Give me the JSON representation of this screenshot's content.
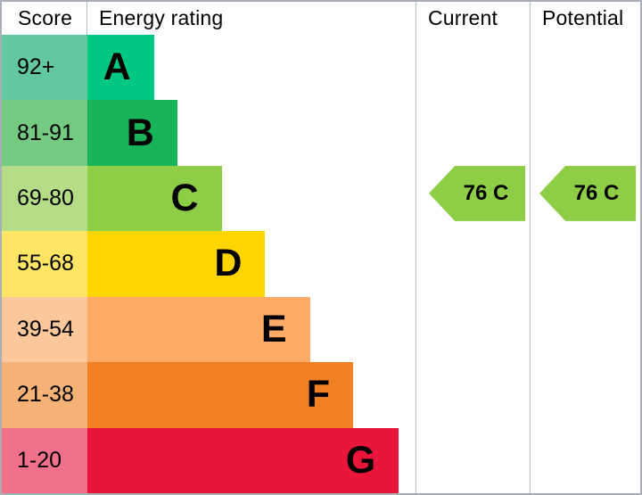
{
  "header": {
    "score": "Score",
    "energy": "Energy rating",
    "current": "Current",
    "potential": "Potential"
  },
  "rows": [
    {
      "score": "92+",
      "letter": "A",
      "bar_percent": 20.3,
      "bar_color": "#00c781",
      "score_color": "#63c7a0"
    },
    {
      "score": "81-91",
      "letter": "B",
      "bar_percent": 27.4,
      "bar_color": "#19b459",
      "score_color": "#74ca81"
    },
    {
      "score": "69-80",
      "letter": "C",
      "bar_percent": 40.9,
      "bar_color": "#8dce46",
      "score_color": "#b5dd87"
    },
    {
      "score": "55-68",
      "letter": "D",
      "bar_percent": 54.2,
      "bar_color": "#ffd500",
      "score_color": "#ffe566"
    },
    {
      "score": "39-54",
      "letter": "E",
      "bar_percent": 67.8,
      "bar_color": "#fcaa65",
      "score_color": "#fdc79c"
    },
    {
      "score": "21-38",
      "letter": "F",
      "bar_percent": 81.0,
      "bar_color": "#ef8023",
      "score_color": "#f4b276"
    },
    {
      "score": "1-20",
      "letter": "G",
      "bar_percent": 94.9,
      "bar_color": "#e9153b",
      "score_color": "#f1718a"
    }
  ],
  "current": {
    "label": "76 C",
    "value": 76,
    "rating": "C",
    "arrow_color": "#8dce46"
  },
  "potential": {
    "label": "76 C",
    "value": 76,
    "rating": "C",
    "arrow_color": "#8dce46"
  },
  "chart_data": {
    "type": "bar",
    "title": "Energy rating",
    "columns": [
      "Score",
      "Energy rating",
      "Current",
      "Potential"
    ],
    "categories": [
      "A",
      "B",
      "C",
      "D",
      "E",
      "F",
      "G"
    ],
    "score_ranges": [
      "92+",
      "81-91",
      "69-80",
      "55-68",
      "39-54",
      "21-38",
      "1-20"
    ],
    "bar_percent": [
      20.3,
      27.4,
      40.9,
      54.2,
      67.8,
      81.0,
      94.9
    ],
    "bar_colors": [
      "#00c781",
      "#19b459",
      "#8dce46",
      "#ffd500",
      "#fcaa65",
      "#ef8023",
      "#e9153b"
    ],
    "current": {
      "score": 76,
      "rating": "C"
    },
    "potential": {
      "score": 76,
      "rating": "C"
    },
    "legend_position": "none",
    "grid": false
  }
}
